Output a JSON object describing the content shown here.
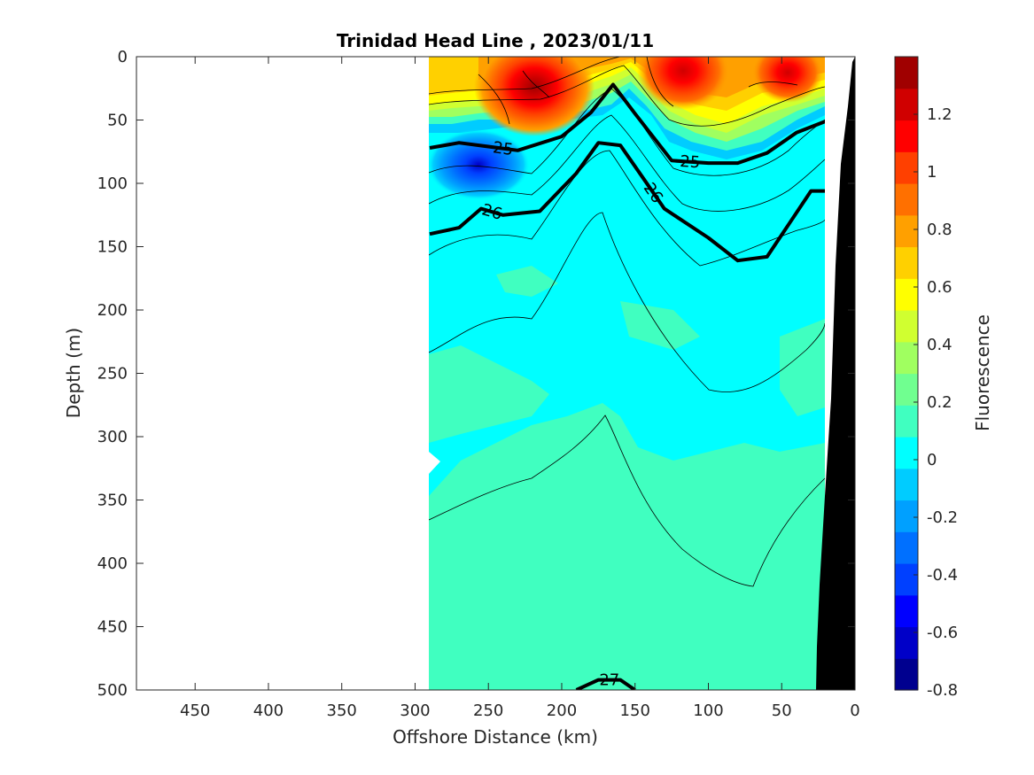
{
  "chart_data": {
    "type": "heatmap",
    "title": "Trinidad Head Line , 2023/01/11",
    "xlabel": "Offshore Distance (km)",
    "ylabel": "Depth (m)",
    "colorbar_label": "Fluorescence",
    "xlim": [
      490,
      0
    ],
    "ylim": [
      500,
      0
    ],
    "x_ticks": [
      "450",
      "400",
      "350",
      "300",
      "250",
      "200",
      "150",
      "100",
      "50",
      "0"
    ],
    "y_ticks": [
      "0",
      "50",
      "100",
      "150",
      "200",
      "250",
      "300",
      "350",
      "400",
      "450",
      "500"
    ],
    "colorbar_ticks": [
      "1.2",
      "1",
      "0.8",
      "0.6",
      "0.4",
      "0.2",
      "0",
      "-0.2",
      "-0.4",
      "-0.6",
      "-0.8"
    ],
    "colorbar_range": [
      -0.8,
      1.4
    ],
    "colorbar_colors": [
      "#00008f",
      "#0000c8",
      "#0000ff",
      "#0040ff",
      "#0070ff",
      "#00a0ff",
      "#00ccff",
      "#00ffff",
      "#40ffc0",
      "#70ff90",
      "#a0ff60",
      "#d0ff30",
      "#ffff00",
      "#ffd000",
      "#ffa000",
      "#ff7000",
      "#ff4000",
      "#ff0000",
      "#d00000",
      "#a00000"
    ],
    "data_x_extent": [
      290,
      20
    ],
    "bathymetry_color": "#000000",
    "density_contours": [
      {
        "label": "25",
        "points": [
          [
            290,
            72
          ],
          [
            270,
            68
          ],
          [
            250,
            71
          ],
          [
            230,
            74
          ],
          [
            200,
            63
          ],
          [
            180,
            44
          ],
          [
            165,
            22
          ],
          [
            150,
            45
          ],
          [
            125,
            82
          ],
          [
            100,
            84
          ],
          [
            80,
            84
          ],
          [
            60,
            76
          ],
          [
            40,
            60
          ],
          [
            20,
            51
          ]
        ]
      },
      {
        "label": "26",
        "points": [
          [
            290,
            140
          ],
          [
            270,
            135
          ],
          [
            255,
            120
          ],
          [
            240,
            125
          ],
          [
            215,
            122
          ],
          [
            190,
            92
          ],
          [
            175,
            68
          ],
          [
            160,
            70
          ],
          [
            145,
            95
          ],
          [
            130,
            120
          ],
          [
            100,
            143
          ],
          [
            80,
            161
          ],
          [
            60,
            158
          ],
          [
            45,
            132
          ],
          [
            30,
            106
          ],
          [
            20,
            106
          ]
        ]
      },
      {
        "label": "27",
        "points": [
          [
            190,
            500
          ],
          [
            175,
            492
          ],
          [
            160,
            492
          ],
          [
            150,
            500
          ]
        ]
      }
    ],
    "high_fluorescence_cores": [
      {
        "x": 215,
        "depth": 25,
        "value": 1.4
      },
      {
        "x": 115,
        "depth": 5,
        "value": 1.2
      },
      {
        "x": 45,
        "depth": 10,
        "value": 1.2
      }
    ],
    "low_fluorescence_core": {
      "x": 258,
      "depth": 85,
      "value": -0.6
    }
  }
}
